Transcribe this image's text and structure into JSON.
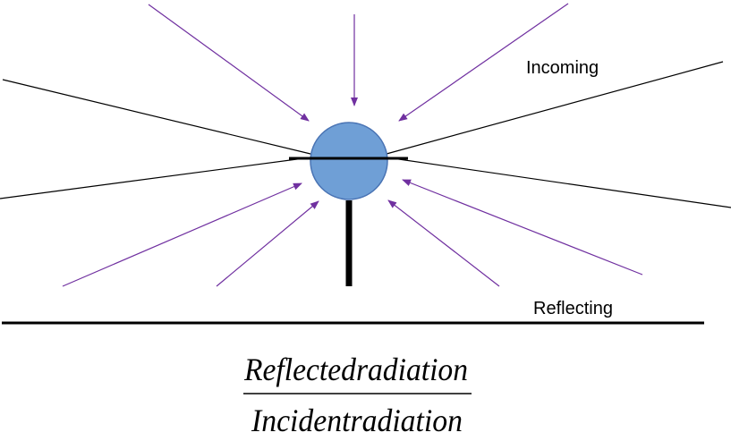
{
  "labels": {
    "incoming": "Incoming",
    "reflecting": "Reflecting"
  },
  "formula": {
    "numerator": "Reflectedradiation",
    "denominator": "Incidentradiation"
  },
  "colors": {
    "arrow": "#7030a0",
    "sphere_fill": "#6f9fd6",
    "sphere_stroke": "#4a74b4",
    "line": "#000000"
  }
}
